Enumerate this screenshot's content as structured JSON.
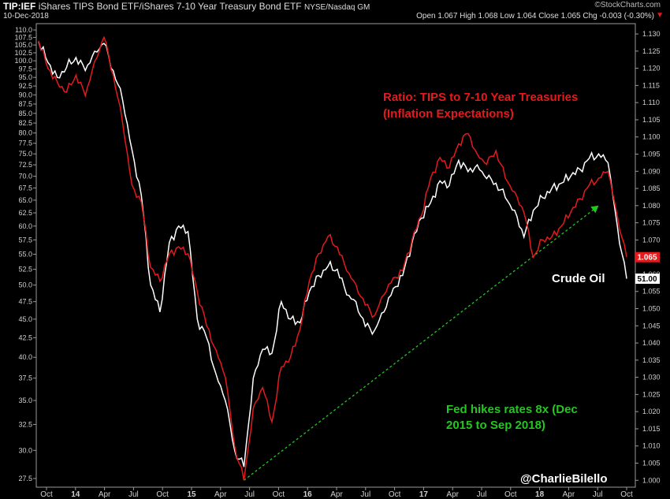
{
  "header": {
    "symbol": "TIP:IEF",
    "description": "iShares TIPS Bond ETF/iShares 7-10 Year Treasury Bond ETF",
    "exchange": "NYSE/Nasdaq GM",
    "date": "10-Dec-2018",
    "quote": "Open 1.067 High 1.068 Low 1.064 Close 1.065 Chg -0.003 (-0.30%)",
    "quote_arrow": "▼",
    "brand": "©StockCharts.com"
  },
  "colors": {
    "background": "#000000",
    "ratio_line": "#e41a1c",
    "oil_line": "#ffffff",
    "trend_line": "#22c81e",
    "annotation_red": "#e41a1c",
    "annotation_green": "#22c81e"
  },
  "annotations": {
    "ratio_title_line1": "Ratio: TIPS to 7-10 Year Treasuries",
    "ratio_title_line2": "(Inflation Expectations)",
    "oil_label": "Crude Oil",
    "fed_line1": "Fed hikes rates 8x (Dec",
    "fed_line2": "2015 to Sep 2018)",
    "credit": "@CharlieBilello",
    "last_ratio": "1.065",
    "last_oil": "51.00"
  },
  "chart_data": {
    "type": "line",
    "x_tick_labels": [
      "Oct",
      "14",
      "Apr",
      "Jul",
      "Oct",
      "15",
      "Apr",
      "Jul",
      "Oct",
      "16",
      "Apr",
      "Jul",
      "Oct",
      "17",
      "Apr",
      "Jul",
      "Oct",
      "18",
      "Apr",
      "Jul",
      "Oct"
    ],
    "left_axis": {
      "ticks": [
        27.5,
        30.0,
        32.5,
        35.0,
        37.5,
        40.0,
        42.5,
        45.0,
        47.5,
        50.0,
        52.5,
        55.0,
        57.5,
        60.0,
        62.5,
        65.0,
        67.5,
        70.0,
        72.5,
        75.0,
        77.5,
        80.0,
        82.5,
        85.0,
        87.5,
        90.0,
        92.5,
        95.0,
        97.5,
        100.0,
        102.5,
        105.0,
        107.5,
        110.0
      ],
      "scale": "log"
    },
    "right_axis": {
      "ticks": [
        1.0,
        1.005,
        1.01,
        1.015,
        1.02,
        1.025,
        1.03,
        1.035,
        1.04,
        1.045,
        1.05,
        1.055,
        1.06,
        1.065,
        1.07,
        1.075,
        1.08,
        1.085,
        1.09,
        1.095,
        1.1,
        1.105,
        1.11,
        1.115,
        1.12,
        1.125,
        1.13
      ],
      "range": [
        0.998,
        1.133
      ]
    },
    "series": [
      {
        "name": "Ratio: TIPS to 7-10 Year Treasuries",
        "axis": "right",
        "color": "#e41a1c",
        "x": [
          0,
          1,
          2,
          3,
          4,
          5,
          6,
          7,
          8,
          9,
          10,
          11,
          12,
          13,
          14,
          15,
          16,
          17,
          18,
          19,
          20,
          21,
          22,
          23,
          24,
          25,
          26,
          27,
          28,
          29,
          30,
          31,
          32,
          33,
          34,
          35,
          36,
          37,
          38,
          39,
          40,
          41,
          42,
          43,
          44,
          45,
          46,
          47,
          48,
          49,
          50,
          51,
          52,
          53,
          54,
          55,
          56,
          57,
          58,
          59,
          60,
          61,
          62,
          63
        ],
        "values": [
          1.128,
          1.12,
          1.116,
          1.113,
          1.118,
          1.112,
          1.122,
          1.129,
          1.118,
          1.104,
          1.086,
          1.081,
          1.062,
          1.058,
          1.066,
          1.068,
          1.066,
          1.055,
          1.045,
          1.038,
          1.03,
          1.01,
          1.0,
          1.021,
          1.027,
          1.017,
          1.033,
          1.036,
          1.044,
          1.058,
          1.066,
          1.071,
          1.068,
          1.061,
          1.057,
          1.051,
          1.048,
          1.054,
          1.059,
          1.061,
          1.07,
          1.077,
          1.088,
          1.094,
          1.091,
          1.098,
          1.101,
          1.095,
          1.092,
          1.096,
          1.088,
          1.084,
          1.078,
          1.065,
          1.07,
          1.071,
          1.074,
          1.078,
          1.082,
          1.086,
          1.088,
          1.09,
          1.077,
          1.065
        ]
      },
      {
        "name": "Crude Oil",
        "axis": "left",
        "color": "#ffffff",
        "x": [
          0,
          1,
          2,
          3,
          4,
          5,
          6,
          7,
          8,
          9,
          10,
          11,
          12,
          13,
          14,
          15,
          16,
          17,
          18,
          19,
          20,
          21,
          22,
          23,
          24,
          25,
          26,
          27,
          28,
          29,
          30,
          31,
          32,
          33,
          34,
          35,
          36,
          37,
          38,
          39,
          40,
          41,
          42,
          43,
          44,
          45,
          46,
          47,
          48,
          49,
          50,
          51,
          52,
          53,
          54,
          55,
          56,
          57,
          58,
          59,
          60,
          61,
          62,
          63
        ],
        "values": [
          106.0,
          99.5,
          95.0,
          98.0,
          101.0,
          97.0,
          103.0,
          105.5,
          97.0,
          88.5,
          76.0,
          66.0,
          50.0,
          46.0,
          57.0,
          60.0,
          59.0,
          45.0,
          42.5,
          38.0,
          35.0,
          30.0,
          28.5,
          37.5,
          41.0,
          40.5,
          47.5,
          45.0,
          44.5,
          49.0,
          51.5,
          53.0,
          52.5,
          48.5,
          47.5,
          44.0,
          43.5,
          46.0,
          49.5,
          51.5,
          57.0,
          61.5,
          64.5,
          69.0,
          68.0,
          73.5,
          71.0,
          72.5,
          69.5,
          68.5,
          65.5,
          63.0,
          58.0,
          63.0,
          65.5,
          67.5,
          68.5,
          70.0,
          71.5,
          74.0,
          75.0,
          73.0,
          60.0,
          51.0
        ]
      }
    ],
    "trend_line": {
      "color": "#22c81e",
      "style": "dashed",
      "from_x": 22,
      "from_right_value": 1.0,
      "to_x": 60,
      "to_right_value": 1.08
    },
    "grid": false,
    "legend": "none"
  }
}
